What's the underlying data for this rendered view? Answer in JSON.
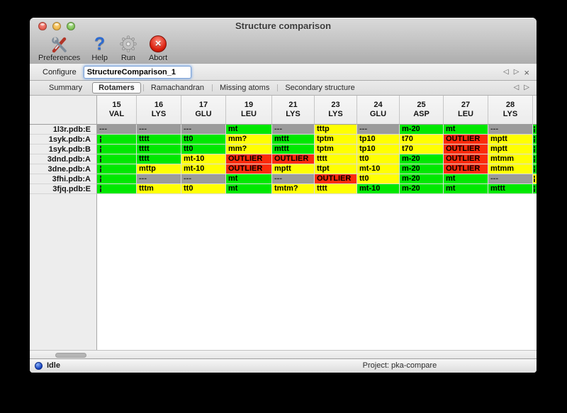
{
  "window": {
    "title": "Structure comparison"
  },
  "toolbar": {
    "items": [
      {
        "label": "Preferences",
        "icon": "tools-icon"
      },
      {
        "label": "Help",
        "icon": "question-icon"
      },
      {
        "label": "Run",
        "icon": "gear-icon"
      },
      {
        "label": "Abort",
        "icon": "abort-icon"
      }
    ]
  },
  "configure": {
    "label": "Configure",
    "value": "StructureComparison_1"
  },
  "nav": {
    "prev": "◁",
    "next": "▷",
    "close": "×"
  },
  "tabs": {
    "items": [
      "Summary",
      "Rotamers",
      "Ramachandran",
      "Missing atoms",
      "Secondary structure"
    ],
    "selected": "Rotamers"
  },
  "table": {
    "columns": [
      {
        "num": "15",
        "res": "VAL"
      },
      {
        "num": "16",
        "res": "LYS"
      },
      {
        "num": "17",
        "res": "GLU"
      },
      {
        "num": "19",
        "res": "LEU"
      },
      {
        "num": "21",
        "res": "LYS"
      },
      {
        "num": "23",
        "res": "LYS"
      },
      {
        "num": "24",
        "res": "GLU"
      },
      {
        "num": "25",
        "res": "ASP"
      },
      {
        "num": "27",
        "res": "LEU"
      },
      {
        "num": "28",
        "res": "LYS"
      }
    ],
    "rows": [
      {
        "label": "1l3r.pdb:E",
        "overflow": "green",
        "cells": [
          {
            "t": "---",
            "c": "gray"
          },
          {
            "t": "---",
            "c": "gray"
          },
          {
            "t": "---",
            "c": "gray"
          },
          {
            "t": "mt",
            "c": "green"
          },
          {
            "t": "---",
            "c": "gray"
          },
          {
            "t": "tttp",
            "c": "yellow"
          },
          {
            "t": "---",
            "c": "gray"
          },
          {
            "t": "m-20",
            "c": "green"
          },
          {
            "t": "mt",
            "c": "green"
          },
          {
            "t": "---",
            "c": "gray"
          }
        ]
      },
      {
        "label": "1syk.pdb:A",
        "overflow": "green",
        "cells": [
          {
            "t": "",
            "c": "green",
            "clipped": true
          },
          {
            "t": "tttt",
            "c": "green"
          },
          {
            "t": "tt0",
            "c": "green"
          },
          {
            "t": "mm?",
            "c": "yellow"
          },
          {
            "t": "mttt",
            "c": "green"
          },
          {
            "t": "tptm",
            "c": "yellow"
          },
          {
            "t": "tp10",
            "c": "yellow"
          },
          {
            "t": "t70",
            "c": "yellow"
          },
          {
            "t": "OUTLIER",
            "c": "red"
          },
          {
            "t": "mptt",
            "c": "yellow"
          }
        ]
      },
      {
        "label": "1syk.pdb:B",
        "overflow": "green",
        "cells": [
          {
            "t": "",
            "c": "green",
            "clipped": true
          },
          {
            "t": "tttt",
            "c": "green"
          },
          {
            "t": "tt0",
            "c": "green"
          },
          {
            "t": "mm?",
            "c": "yellow"
          },
          {
            "t": "mttt",
            "c": "green"
          },
          {
            "t": "tptm",
            "c": "yellow"
          },
          {
            "t": "tp10",
            "c": "yellow"
          },
          {
            "t": "t70",
            "c": "yellow"
          },
          {
            "t": "OUTLIER",
            "c": "red"
          },
          {
            "t": "mptt",
            "c": "yellow"
          }
        ]
      },
      {
        "label": "3dnd.pdb:A",
        "overflow": "green",
        "cells": [
          {
            "t": "",
            "c": "green",
            "clipped": true
          },
          {
            "t": "tttt",
            "c": "green"
          },
          {
            "t": "mt-10",
            "c": "yellow"
          },
          {
            "t": "OUTLIER",
            "c": "red"
          },
          {
            "t": "OUTLIER",
            "c": "red"
          },
          {
            "t": "tttt",
            "c": "yellow"
          },
          {
            "t": "tt0",
            "c": "yellow"
          },
          {
            "t": "m-20",
            "c": "green"
          },
          {
            "t": "OUTLIER",
            "c": "red"
          },
          {
            "t": "mtmm",
            "c": "yellow"
          }
        ]
      },
      {
        "label": "3dne.pdb:A",
        "overflow": "green",
        "cells": [
          {
            "t": "",
            "c": "green",
            "clipped": true
          },
          {
            "t": "mttp",
            "c": "yellow"
          },
          {
            "t": "mt-10",
            "c": "yellow"
          },
          {
            "t": "OUTLIER",
            "c": "red"
          },
          {
            "t": "mptt",
            "c": "yellow"
          },
          {
            "t": "ttpt",
            "c": "yellow"
          },
          {
            "t": "mt-10",
            "c": "yellow"
          },
          {
            "t": "m-20",
            "c": "green"
          },
          {
            "t": "OUTLIER",
            "c": "red"
          },
          {
            "t": "mtmm",
            "c": "yellow"
          }
        ]
      },
      {
        "label": "3fhi.pdb:A",
        "overflow": "yellow",
        "cells": [
          {
            "t": "",
            "c": "green",
            "clipped": true
          },
          {
            "t": "---",
            "c": "gray"
          },
          {
            "t": "---",
            "c": "gray"
          },
          {
            "t": "mt",
            "c": "green"
          },
          {
            "t": "---",
            "c": "gray"
          },
          {
            "t": "OUTLIER",
            "c": "red"
          },
          {
            "t": "tt0",
            "c": "yellow"
          },
          {
            "t": "m-20",
            "c": "green"
          },
          {
            "t": "mt",
            "c": "green"
          },
          {
            "t": "---",
            "c": "gray"
          }
        ]
      },
      {
        "label": "3fjq.pdb:E",
        "overflow": "green",
        "cells": [
          {
            "t": "",
            "c": "green",
            "clipped": true
          },
          {
            "t": "tttm",
            "c": "yellow"
          },
          {
            "t": "tt0",
            "c": "yellow"
          },
          {
            "t": "mt",
            "c": "green"
          },
          {
            "t": "tmtm?",
            "c": "yellow"
          },
          {
            "t": "tttt",
            "c": "yellow"
          },
          {
            "t": "mt-10",
            "c": "green"
          },
          {
            "t": "m-20",
            "c": "green"
          },
          {
            "t": "mt",
            "c": "green"
          },
          {
            "t": "mttt",
            "c": "green"
          }
        ]
      }
    ]
  },
  "statusbar": {
    "status": "Idle",
    "project": "Project: pka-compare"
  },
  "colors": {
    "green": "#00e800",
    "yellow": "#ffff00",
    "red": "#fb2b0a",
    "gray": "#9b9b9b"
  }
}
